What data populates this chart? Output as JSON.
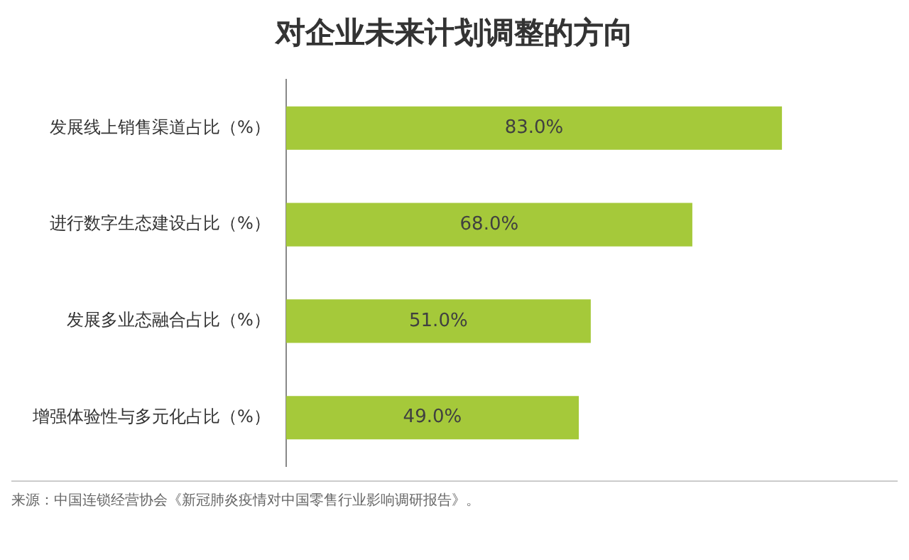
{
  "chart_data": {
    "type": "bar",
    "orientation": "horizontal",
    "title": "对企业未来计划调整的方向",
    "categories": [
      "发展线上销售渠道占比（%）",
      "进行数字生态建设占比（%）",
      "发展多业态融合占比（%）",
      "增强体验性与多元化占比（%）"
    ],
    "values": [
      83.0,
      68.0,
      51.0,
      49.0
    ],
    "color": "#a5c93a",
    "value_labels": [
      "83.0%",
      "68.0%",
      "51.0%",
      "49.0%"
    ],
    "tick_labels": "y",
    "legend": false,
    "annotations": [
      "来源：中国连锁经营协会《新冠肺炎疫情对中国零售行业影响调研报告》。"
    ]
  }
}
